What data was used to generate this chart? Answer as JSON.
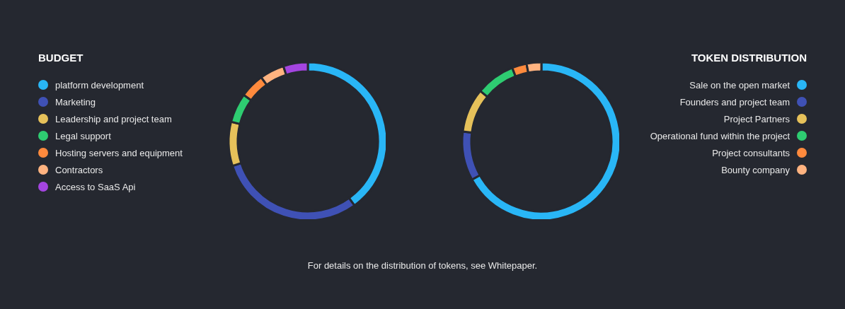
{
  "chart_data": [
    {
      "type": "donut",
      "title": "BUDGET",
      "legend": "left",
      "categories": [
        "platform development",
        "Marketing",
        "Leadership and project team",
        "Legal support",
        "Hosting servers and equipment",
        "Contractors",
        "Access to SaaS Api"
      ],
      "values": [
        40,
        30,
        9,
        6,
        5,
        5,
        5
      ],
      "colors": [
        "#29b6f6",
        "#3f51b5",
        "#e6c15a",
        "#2ecc71",
        "#ff8a3d",
        "#ffb380",
        "#a445e0"
      ]
    },
    {
      "type": "donut",
      "title": "TOKEN DISTRIBUTION",
      "legend": "right",
      "categories": [
        "Sale on the open market",
        "Founders and project team",
        "Project Partners",
        "Operational fund within the project",
        "Project consultants",
        "Bounty company"
      ],
      "values": [
        67,
        10,
        9,
        8,
        3,
        3
      ],
      "colors": [
        "#29b6f6",
        "#3f51b5",
        "#e6c15a",
        "#2ecc71",
        "#ff8a3d",
        "#ffb380"
      ],
      "annotations": [
        "For details on the distribution of tokens, see Whitepaper."
      ]
    }
  ]
}
